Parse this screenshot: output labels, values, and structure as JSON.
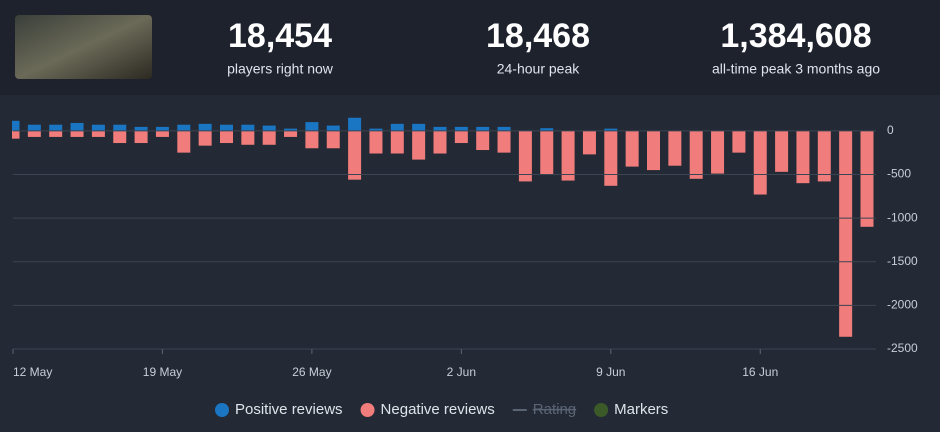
{
  "header": {
    "stats": [
      {
        "value": "18,454",
        "label": "players right now"
      },
      {
        "value": "18,468",
        "label": "24-hour peak"
      },
      {
        "value": "1,384,608",
        "label": "all-time peak 3 months ago"
      }
    ]
  },
  "chart_data": {
    "type": "bar",
    "categories": [
      "12 May",
      null,
      null,
      null,
      null,
      null,
      null,
      "19 May",
      null,
      null,
      null,
      null,
      null,
      null,
      "26 May",
      null,
      null,
      null,
      null,
      null,
      null,
      "2 Jun",
      null,
      null,
      null,
      null,
      null,
      null,
      "9 Jun",
      null,
      null,
      null,
      null,
      null,
      null,
      "16 Jun",
      null,
      null,
      null,
      null,
      null
    ],
    "series": [
      {
        "name": "Positive reviews",
        "color": "#1a75c2",
        "values": [
          115,
          70,
          70,
          90,
          70,
          70,
          45,
          45,
          70,
          80,
          70,
          70,
          60,
          25,
          100,
          60,
          150,
          25,
          80,
          80,
          45,
          45,
          45,
          45,
          5,
          30,
          0,
          0,
          25,
          0,
          0,
          0,
          0,
          0,
          0,
          0,
          0,
          0,
          0,
          0,
          0
        ]
      },
      {
        "name": "Negative reviews",
        "color": "#f07c7c",
        "values": [
          -90,
          -70,
          -70,
          -70,
          -70,
          -140,
          -140,
          -70,
          -250,
          -170,
          -140,
          -160,
          -160,
          -70,
          -200,
          -200,
          -560,
          -260,
          -260,
          -330,
          -260,
          -140,
          -220,
          -250,
          -580,
          -500,
          -570,
          -270,
          -630,
          -410,
          -450,
          -400,
          -550,
          -490,
          -250,
          -730,
          -470,
          -600,
          -580,
          -2360,
          -1100
        ]
      }
    ],
    "legend_items": [
      {
        "name": "Rating",
        "hidden": true
      },
      {
        "name": "Markers",
        "color": "#3c5a28"
      }
    ],
    "ylim": [
      -2500,
      250
    ],
    "yticks": [
      0,
      -500,
      -1000,
      -1500,
      -2000,
      -2500
    ],
    "grid": true,
    "legend": "bottom"
  }
}
